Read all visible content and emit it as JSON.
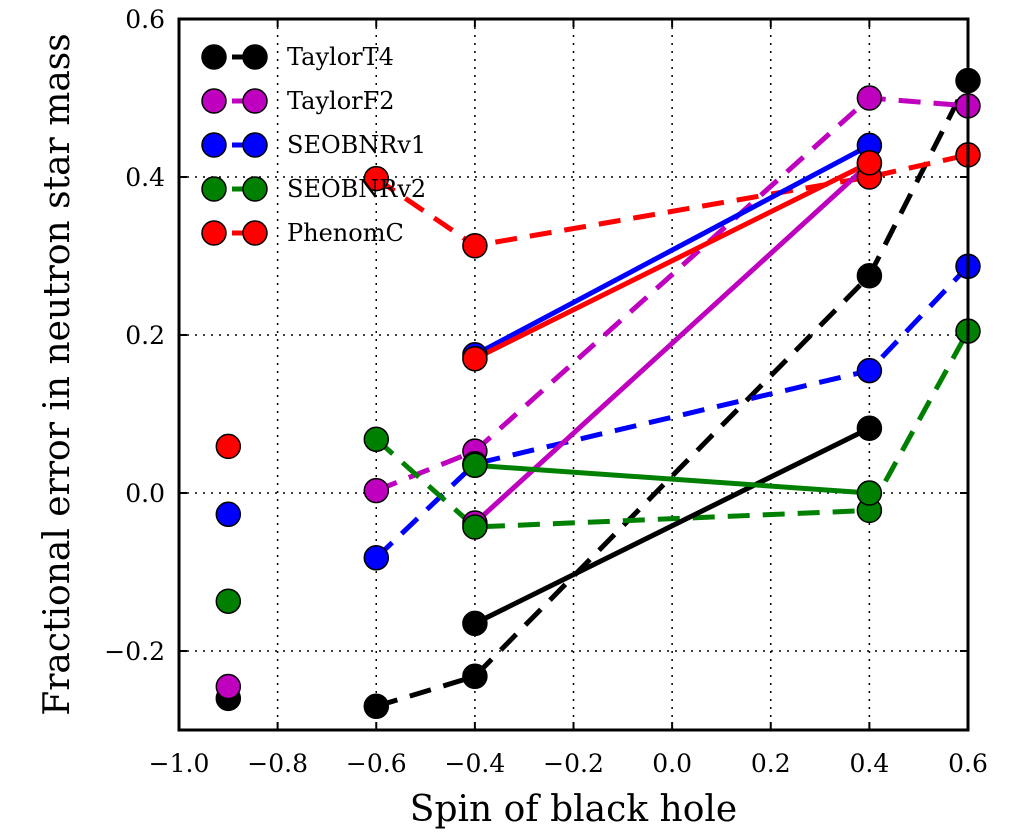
{
  "chart_data": {
    "type": "line",
    "title": "",
    "xlabel": "Spin of black hole",
    "ylabel": "Fractional error in neutron star mass",
    "xlim": [
      -1.0,
      0.6
    ],
    "ylim": [
      -0.3,
      0.6
    ],
    "xticks": [
      -1.0,
      -0.8,
      -0.6,
      -0.4,
      -0.2,
      0.0,
      0.2,
      0.4,
      0.6
    ],
    "yticks": [
      -0.2,
      0.0,
      0.2,
      0.4,
      0.6
    ],
    "xtick_labels": [
      "−1.0",
      "−0.8",
      "−0.6",
      "−0.4",
      "−0.2",
      "0.0",
      "0.2",
      "0.4",
      "0.6"
    ],
    "ytick_labels": [
      "−0.2",
      "0.0",
      "0.2",
      "0.4",
      "0.6"
    ],
    "grid": true,
    "legend_position": "top-left",
    "series": [
      {
        "name": "TaylorT4",
        "color": "#000000",
        "legend_style": "dashed",
        "dashed": [
          [
            -0.6,
            -0.27
          ],
          [
            -0.4,
            -0.232
          ],
          [
            0.4,
            0.275
          ],
          [
            0.6,
            0.522
          ]
        ],
        "solid": [
          [
            -0.4,
            -0.165
          ],
          [
            0.4,
            0.082
          ]
        ],
        "isolated": [
          [
            -0.9,
            -0.26
          ]
        ]
      },
      {
        "name": "TaylorF2",
        "color": "#bf00bf",
        "legend_style": "dashed",
        "dashed": [
          [
            -0.6,
            0.003
          ],
          [
            -0.4,
            0.053
          ],
          [
            0.4,
            0.5
          ],
          [
            0.6,
            0.49
          ]
        ],
        "solid": [
          [
            -0.4,
            -0.038
          ],
          [
            0.4,
            0.417
          ]
        ],
        "isolated": [
          [
            -0.9,
            -0.245
          ]
        ]
      },
      {
        "name": "SEOBNRv1",
        "color": "#0000ff",
        "legend_style": "dashed",
        "dashed": [
          [
            -0.6,
            -0.082
          ],
          [
            -0.4,
            0.037
          ],
          [
            0.4,
            0.155
          ],
          [
            0.6,
            0.287
          ]
        ],
        "solid": [
          [
            -0.4,
            0.175
          ],
          [
            0.4,
            0.44
          ]
        ],
        "isolated": [
          [
            -0.9,
            -0.027
          ]
        ]
      },
      {
        "name": "SEOBNRv2",
        "color": "#008000",
        "legend_style": "dashed",
        "dashed": [
          [
            -0.6,
            0.068
          ],
          [
            -0.4,
            -0.043
          ],
          [
            0.4,
            -0.022
          ],
          [
            0.6,
            0.205
          ]
        ],
        "solid": [
          [
            -0.4,
            0.035
          ],
          [
            0.4,
            0.0
          ]
        ],
        "isolated": [
          [
            -0.9,
            -0.137
          ]
        ]
      },
      {
        "name": "PhenomC",
        "color": "#ff0000",
        "legend_style": "dashed",
        "dashed": [
          [
            -0.6,
            0.398
          ],
          [
            -0.4,
            0.313
          ],
          [
            0.4,
            0.4
          ],
          [
            0.6,
            0.428
          ]
        ],
        "solid": [
          [
            -0.4,
            0.17
          ],
          [
            0.4,
            0.418
          ]
        ],
        "isolated": [
          [
            -0.9,
            0.059
          ]
        ]
      }
    ]
  }
}
